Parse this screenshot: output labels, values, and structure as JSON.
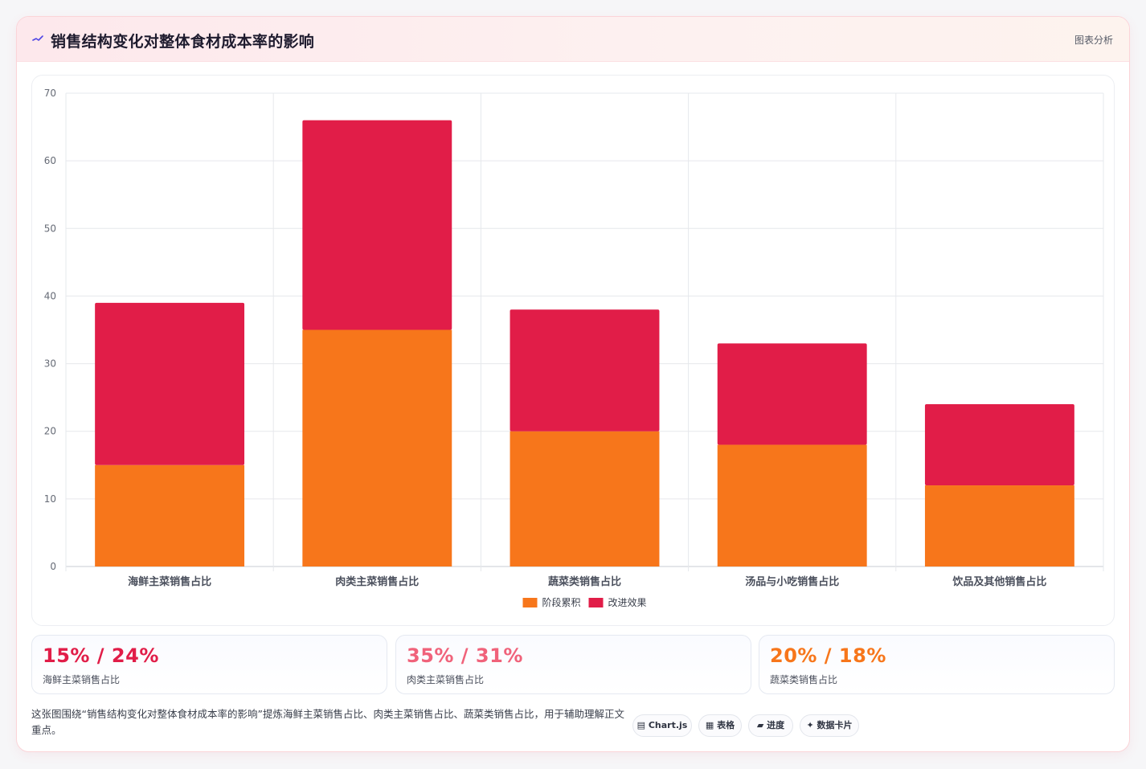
{
  "header": {
    "title": "销售结构变化对整体食材成本率的影响",
    "tag": "图表分析",
    "icon": "sparkline-icon"
  },
  "chart_data": {
    "type": "bar",
    "stacked": true,
    "categories": [
      "海鲜主菜销售占比",
      "肉类主菜销售占比",
      "蔬菜类销售占比",
      "汤品与小吃销售占比",
      "饮品及其他销售占比"
    ],
    "series": [
      {
        "name": "阶段累积",
        "values": [
          15,
          35,
          20,
          18,
          12
        ],
        "color": "#f7761b"
      },
      {
        "name": "改进效果",
        "values": [
          24,
          31,
          18,
          15,
          12
        ],
        "color": "#e11d48"
      }
    ],
    "ylim": [
      0,
      70
    ],
    "yticks": [
      0,
      10,
      20,
      30,
      40,
      50,
      60,
      70
    ],
    "grid": true,
    "legend_position": "bottom"
  },
  "stats": [
    {
      "value": "15% / 24%",
      "label": "海鲜主菜销售占比",
      "color": "#e11d48"
    },
    {
      "value": "35% / 31%",
      "label": "肉类主菜销售占比",
      "color": "#f0627a"
    },
    {
      "value": "20% / 18%",
      "label": "蔬菜类销售占比",
      "color": "#f7761b"
    }
  ],
  "footer": {
    "description": "这张图围绕“销售结构变化对整体食材成本率的影响”提炼海鲜主菜销售占比、肉类主菜销售占比、蔬菜类销售占比，用于辅助理解正文重点。",
    "chips": [
      {
        "label": "▤ Chart.js",
        "icon": "chart-icon"
      },
      {
        "label": "▦ 表格",
        "icon": "table-icon"
      },
      {
        "label": "▰ 进度",
        "icon": "progress-icon"
      },
      {
        "label": "✦ 数据卡片",
        "icon": "sparkle-icon"
      }
    ]
  }
}
